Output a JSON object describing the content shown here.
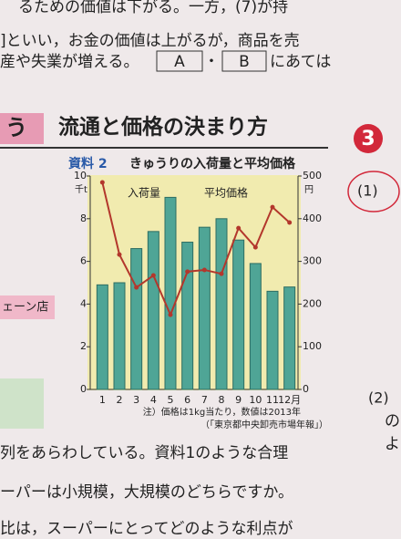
{
  "page": {
    "top_lines": [
      "るための価値は下がる。一方，(7)が持",
      "]といい，お金の価値は上がるが，商品を売",
      "産や失業が増える。"
    ],
    "box_a": "A",
    "box_dot": "・",
    "box_b": "B",
    "after_boxes": "にあては",
    "section_left": "う",
    "heading": "流通と価格の決まり方",
    "section_number": "3",
    "side_box": "ェーン店",
    "q1": "(1)",
    "q2": "(2)",
    "side_chars": [
      "の",
      "よ"
    ],
    "bottom_lines": [
      "列をあらわしている。資料1のような合理",
      "ーパーは小規模，大規模のどちらですか。",
      "比は，スーパーにとってどのような利点が"
    ]
  },
  "chart_data": {
    "type": "bar_line",
    "label": "資料 2",
    "title": "きゅうりの入荷量と平均価格",
    "categories": [
      "1",
      "2",
      "3",
      "4",
      "5",
      "6",
      "7",
      "8",
      "9",
      "10",
      "11",
      "12月"
    ],
    "ylabel": "千t",
    "y2label": "円",
    "ylim": [
      0,
      10
    ],
    "yticks": [
      0,
      2,
      4,
      6,
      8,
      10
    ],
    "y2lim": [
      0,
      500
    ],
    "y2ticks": [
      0,
      100,
      200,
      300,
      400,
      500
    ],
    "series": [
      {
        "name": "入荷量",
        "color": "#4fa596",
        "values": [
          4.9,
          5.0,
          6.6,
          7.4,
          9.0,
          6.9,
          7.6,
          8.0,
          7.0,
          5.9,
          4.6,
          4.8
        ]
      },
      {
        "name": "平均価格",
        "color": "#b3372c",
        "axis": "y2",
        "values": [
          485,
          316,
          239,
          267,
          175,
          276,
          280,
          271,
          378,
          333,
          427,
          391
        ]
      }
    ],
    "notes": [
      "注）価格は1kg当たり，数値は2013年",
      "（「東京都中央卸売市場年報」）"
    ]
  }
}
